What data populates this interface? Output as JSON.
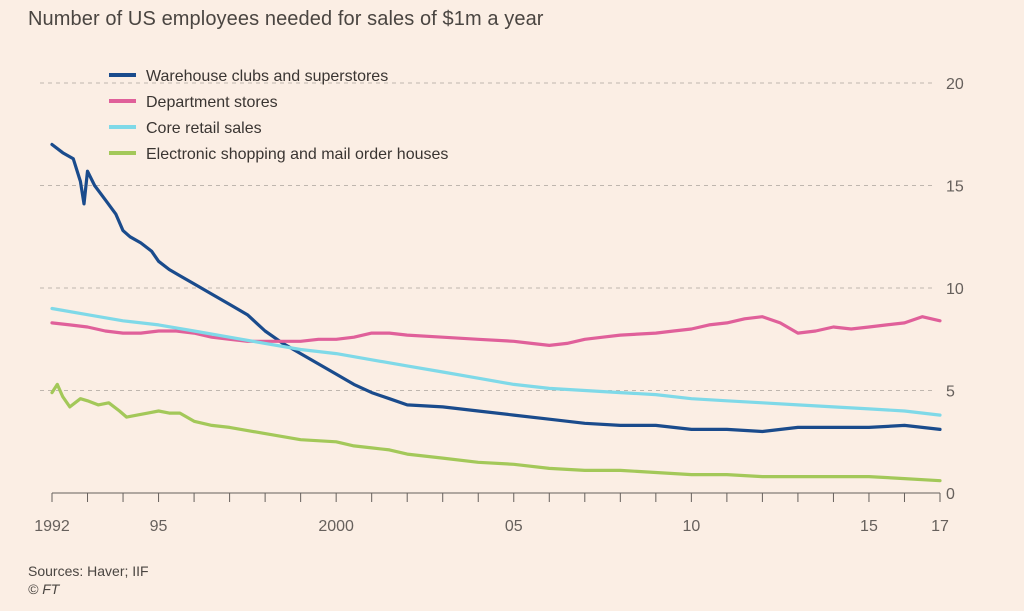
{
  "title": "Number of US employees needed for sales of $1m a year",
  "footer": {
    "sources": "Sources: Haver; IIF",
    "copyright": "© FT"
  },
  "colors": {
    "background": "#fbeee4",
    "grid": "#bfb6ae",
    "axis": "#66605c",
    "warehouse": "#1a4b8c",
    "department": "#e0609a",
    "core": "#7fd9e8",
    "electronic": "#a3c859"
  },
  "chart_data": {
    "type": "line",
    "title": "Number of US employees needed for sales of $1m a year",
    "xlabel": "",
    "ylabel": "",
    "xlim": [
      1992,
      2017
    ],
    "ylim": [
      0,
      20
    ],
    "y_ticks": [
      0,
      5,
      10,
      15,
      20
    ],
    "x_ticks": [
      {
        "value": 1992,
        "label": "1992"
      },
      {
        "value": 1995,
        "label": "95"
      },
      {
        "value": 2000,
        "label": "2000"
      },
      {
        "value": 2005,
        "label": "05"
      },
      {
        "value": 2010,
        "label": "10"
      },
      {
        "value": 2015,
        "label": "15"
      },
      {
        "value": 2017,
        "label": "17"
      }
    ],
    "grid": "horizontal-dashed",
    "legend_position": "top-left",
    "series": [
      {
        "key": "warehouse",
        "name": "Warehouse clubs and superstores",
        "points": [
          [
            1992,
            17.0
          ],
          [
            1992.3,
            16.6
          ],
          [
            1992.6,
            16.3
          ],
          [
            1992.8,
            15.2
          ],
          [
            1992.9,
            14.1
          ],
          [
            1993.0,
            15.7
          ],
          [
            1993.2,
            15.0
          ],
          [
            1993.5,
            14.3
          ],
          [
            1993.8,
            13.6
          ],
          [
            1994.0,
            12.8
          ],
          [
            1994.2,
            12.5
          ],
          [
            1994.5,
            12.2
          ],
          [
            1994.8,
            11.8
          ],
          [
            1995.0,
            11.3
          ],
          [
            1995.3,
            10.9
          ],
          [
            1995.6,
            10.6
          ],
          [
            1996.0,
            10.2
          ],
          [
            1996.5,
            9.7
          ],
          [
            1997.0,
            9.2
          ],
          [
            1997.5,
            8.7
          ],
          [
            1998.0,
            7.9
          ],
          [
            1998.5,
            7.3
          ],
          [
            1999.0,
            6.8
          ],
          [
            1999.5,
            6.3
          ],
          [
            2000.0,
            5.8
          ],
          [
            2000.5,
            5.3
          ],
          [
            2001.0,
            4.9
          ],
          [
            2001.5,
            4.6
          ],
          [
            2002.0,
            4.3
          ],
          [
            2003.0,
            4.2
          ],
          [
            2004.0,
            4.0
          ],
          [
            2005.0,
            3.8
          ],
          [
            2006.0,
            3.6
          ],
          [
            2007.0,
            3.4
          ],
          [
            2008.0,
            3.3
          ],
          [
            2009.0,
            3.3
          ],
          [
            2010.0,
            3.1
          ],
          [
            2011.0,
            3.1
          ],
          [
            2012.0,
            3.0
          ],
          [
            2013.0,
            3.2
          ],
          [
            2014.0,
            3.2
          ],
          [
            2015.0,
            3.2
          ],
          [
            2016.0,
            3.3
          ],
          [
            2017.0,
            3.1
          ]
        ]
      },
      {
        "key": "department",
        "name": "Department stores",
        "points": [
          [
            1992,
            8.3
          ],
          [
            1992.5,
            8.2
          ],
          [
            1993.0,
            8.1
          ],
          [
            1993.5,
            7.9
          ],
          [
            1994.0,
            7.8
          ],
          [
            1994.5,
            7.8
          ],
          [
            1995.0,
            7.9
          ],
          [
            1995.5,
            7.9
          ],
          [
            1996.0,
            7.8
          ],
          [
            1996.5,
            7.6
          ],
          [
            1997.0,
            7.5
          ],
          [
            1997.5,
            7.4
          ],
          [
            1998.0,
            7.4
          ],
          [
            1998.5,
            7.4
          ],
          [
            1999.0,
            7.4
          ],
          [
            1999.5,
            7.5
          ],
          [
            2000.0,
            7.5
          ],
          [
            2000.5,
            7.6
          ],
          [
            2001.0,
            7.8
          ],
          [
            2001.5,
            7.8
          ],
          [
            2002.0,
            7.7
          ],
          [
            2003.0,
            7.6
          ],
          [
            2004.0,
            7.5
          ],
          [
            2005.0,
            7.4
          ],
          [
            2005.5,
            7.3
          ],
          [
            2006.0,
            7.2
          ],
          [
            2006.5,
            7.3
          ],
          [
            2007.0,
            7.5
          ],
          [
            2007.5,
            7.6
          ],
          [
            2008.0,
            7.7
          ],
          [
            2009.0,
            7.8
          ],
          [
            2009.5,
            7.9
          ],
          [
            2010.0,
            8.0
          ],
          [
            2010.5,
            8.2
          ],
          [
            2011.0,
            8.3
          ],
          [
            2011.5,
            8.5
          ],
          [
            2012.0,
            8.6
          ],
          [
            2012.5,
            8.3
          ],
          [
            2013.0,
            7.8
          ],
          [
            2013.5,
            7.9
          ],
          [
            2014.0,
            8.1
          ],
          [
            2014.5,
            8.0
          ],
          [
            2015.0,
            8.1
          ],
          [
            2015.5,
            8.2
          ],
          [
            2016.0,
            8.3
          ],
          [
            2016.5,
            8.6
          ],
          [
            2017.0,
            8.4
          ]
        ]
      },
      {
        "key": "core",
        "name": "Core retail sales",
        "points": [
          [
            1992,
            9.0
          ],
          [
            1993.0,
            8.7
          ],
          [
            1994.0,
            8.4
          ],
          [
            1995.0,
            8.2
          ],
          [
            1996.0,
            7.9
          ],
          [
            1997.0,
            7.6
          ],
          [
            1998.0,
            7.3
          ],
          [
            1999.0,
            7.0
          ],
          [
            2000.0,
            6.8
          ],
          [
            2001.0,
            6.5
          ],
          [
            2002.0,
            6.2
          ],
          [
            2003.0,
            5.9
          ],
          [
            2004.0,
            5.6
          ],
          [
            2005.0,
            5.3
          ],
          [
            2006.0,
            5.1
          ],
          [
            2007.0,
            5.0
          ],
          [
            2008.0,
            4.9
          ],
          [
            2009.0,
            4.8
          ],
          [
            2010.0,
            4.6
          ],
          [
            2011.0,
            4.5
          ],
          [
            2012.0,
            4.4
          ],
          [
            2013.0,
            4.3
          ],
          [
            2014.0,
            4.2
          ],
          [
            2015.0,
            4.1
          ],
          [
            2016.0,
            4.0
          ],
          [
            2017.0,
            3.8
          ]
        ]
      },
      {
        "key": "electronic",
        "name": "Electronic shopping and mail order houses",
        "points": [
          [
            1992,
            4.9
          ],
          [
            1992.15,
            5.3
          ],
          [
            1992.3,
            4.7
          ],
          [
            1992.5,
            4.2
          ],
          [
            1992.8,
            4.6
          ],
          [
            1993.0,
            4.5
          ],
          [
            1993.3,
            4.3
          ],
          [
            1993.6,
            4.4
          ],
          [
            1993.9,
            4.0
          ],
          [
            1994.1,
            3.7
          ],
          [
            1994.4,
            3.8
          ],
          [
            1994.7,
            3.9
          ],
          [
            1995.0,
            4.0
          ],
          [
            1995.3,
            3.9
          ],
          [
            1995.6,
            3.9
          ],
          [
            1996.0,
            3.5
          ],
          [
            1996.5,
            3.3
          ],
          [
            1997.0,
            3.2
          ],
          [
            1998.0,
            2.9
          ],
          [
            1999.0,
            2.6
          ],
          [
            2000.0,
            2.5
          ],
          [
            2000.5,
            2.3
          ],
          [
            2001.0,
            2.2
          ],
          [
            2001.5,
            2.1
          ],
          [
            2002.0,
            1.9
          ],
          [
            2003.0,
            1.7
          ],
          [
            2004.0,
            1.5
          ],
          [
            2005.0,
            1.4
          ],
          [
            2006.0,
            1.2
          ],
          [
            2007.0,
            1.1
          ],
          [
            2008.0,
            1.1
          ],
          [
            2009.0,
            1.0
          ],
          [
            2010.0,
            0.9
          ],
          [
            2011.0,
            0.9
          ],
          [
            2012.0,
            0.8
          ],
          [
            2013.0,
            0.8
          ],
          [
            2014.0,
            0.8
          ],
          [
            2015.0,
            0.8
          ],
          [
            2016.0,
            0.7
          ],
          [
            2017.0,
            0.6
          ]
        ]
      }
    ]
  }
}
